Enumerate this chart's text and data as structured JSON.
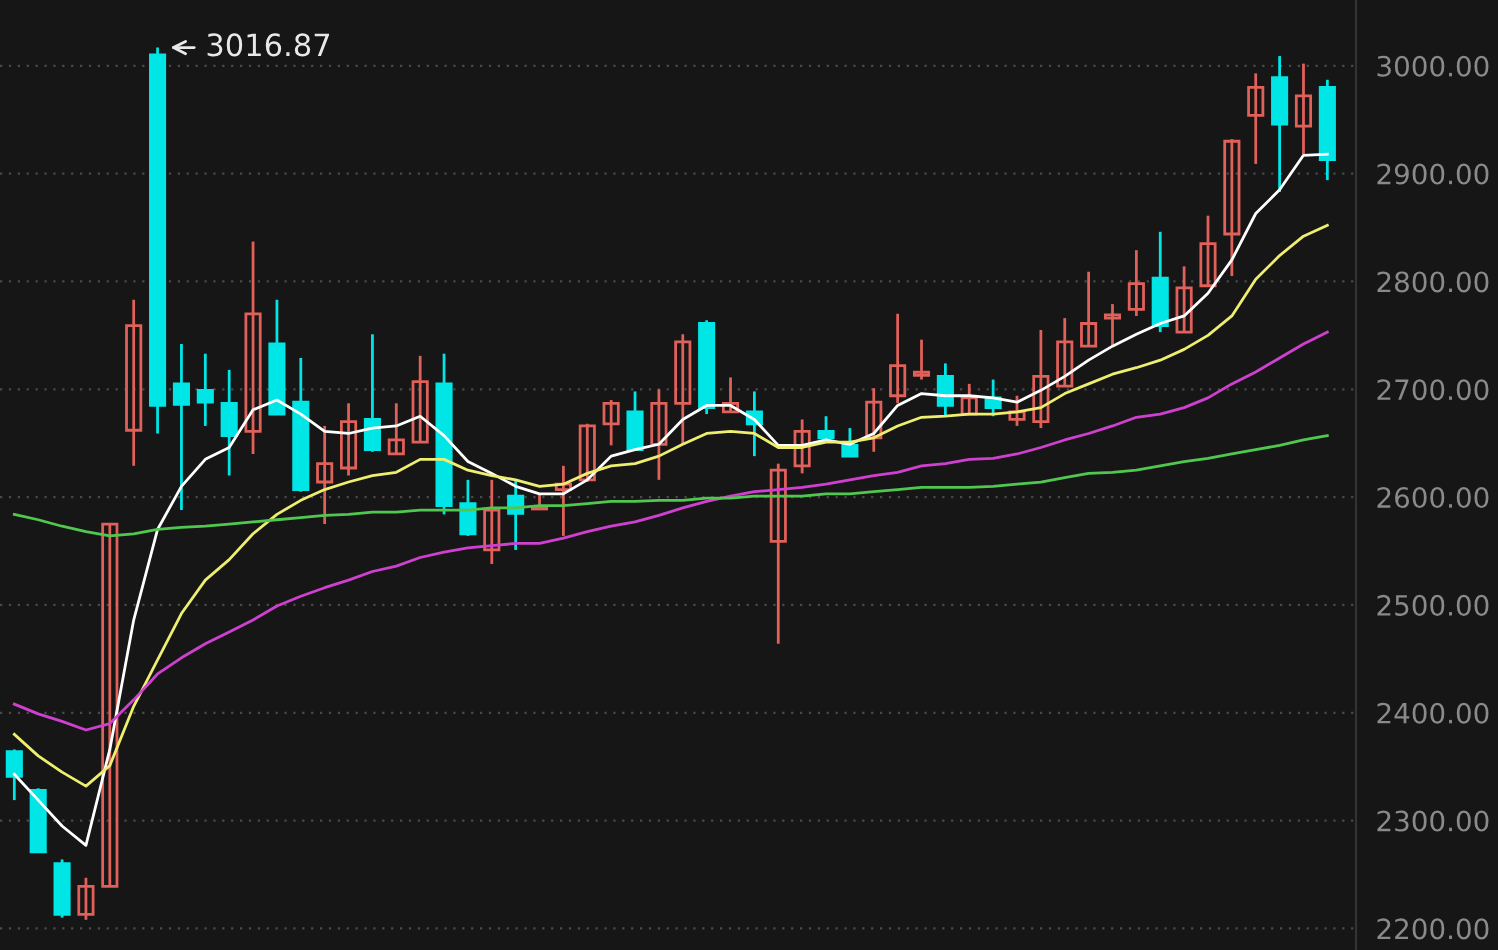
{
  "chart_data": {
    "type": "candlestick",
    "categories": [
      null,
      null,
      null,
      null,
      null,
      null,
      null,
      null,
      null,
      null,
      null,
      null,
      null,
      null,
      null,
      null,
      null,
      null,
      null,
      null,
      null,
      null,
      null,
      null,
      null,
      null,
      null,
      null,
      null,
      null,
      null,
      null,
      null,
      null,
      null,
      null,
      null,
      null,
      null,
      null,
      null,
      null,
      null,
      null,
      null,
      null,
      null,
      null,
      null,
      null,
      null,
      null,
      null,
      null,
      null,
      null
    ],
    "ohlc": [
      [
        2364,
        2366,
        2319,
        2341
      ],
      [
        2328,
        2330,
        2271,
        2271
      ],
      [
        2260,
        2264,
        2210,
        2213
      ],
      [
        2213,
        2247,
        2208,
        2239
      ],
      [
        2239,
        2575,
        2239,
        2575
      ],
      [
        2662,
        2783,
        2629,
        2759
      ],
      [
        3010,
        3016.87,
        2659,
        2685
      ],
      [
        2705,
        2742,
        2588,
        2686
      ],
      [
        2699,
        2733,
        2666,
        2688
      ],
      [
        2687,
        2718,
        2620,
        2657
      ],
      [
        2661,
        2837,
        2640,
        2770
      ],
      [
        2742,
        2783,
        2677,
        2677
      ],
      [
        2688,
        2729,
        2605,
        2607
      ],
      [
        2614,
        2666,
        2575,
        2631
      ],
      [
        2627,
        2687,
        2620,
        2670
      ],
      [
        2672,
        2751,
        2642,
        2644
      ],
      [
        2640,
        2687,
        2640,
        2653
      ],
      [
        2651,
        2731,
        2651,
        2707
      ],
      [
        2705,
        2733,
        2584,
        2592
      ],
      [
        2594,
        2616,
        2564,
        2566
      ],
      [
        2551,
        2616,
        2538,
        2588
      ],
      [
        2601,
        2616,
        2551,
        2585
      ],
      [
        2589,
        2603,
        2588,
        2591
      ],
      [
        2607,
        2629,
        2564,
        2612
      ],
      [
        2616,
        2668,
        2614,
        2666
      ],
      [
        2668,
        2690,
        2648,
        2687
      ],
      [
        2679,
        2698,
        2644,
        2644
      ],
      [
        2649,
        2700,
        2616,
        2687
      ],
      [
        2687,
        2751,
        2649,
        2744
      ],
      [
        2761,
        2764,
        2677,
        2683
      ],
      [
        2679,
        2711,
        2679,
        2687
      ],
      [
        2679,
        2698,
        2638,
        2668
      ],
      [
        2559,
        2631,
        2464,
        2625
      ],
      [
        2629,
        2672,
        2622,
        2661
      ],
      [
        2661,
        2675,
        2655,
        2655
      ],
      [
        2648,
        2664,
        2638,
        2638
      ],
      [
        2655,
        2701,
        2642,
        2688
      ],
      [
        2694,
        2770,
        2687,
        2722
      ],
      [
        2713,
        2746,
        2709,
        2716
      ],
      [
        2712,
        2724,
        2675,
        2685
      ],
      [
        2677,
        2705,
        2677,
        2692
      ],
      [
        2692,
        2709,
        2675,
        2683
      ],
      [
        2672,
        2694,
        2666,
        2679
      ],
      [
        2670,
        2755,
        2664,
        2712
      ],
      [
        2703,
        2766,
        2703,
        2744
      ],
      [
        2740,
        2809,
        2740,
        2761
      ],
      [
        2766,
        2779,
        2740,
        2769
      ],
      [
        2774,
        2829,
        2768,
        2798
      ],
      [
        2803,
        2846,
        2753,
        2759
      ],
      [
        2753,
        2814,
        2753,
        2794
      ],
      [
        2796,
        2861,
        2796,
        2835
      ],
      [
        2844,
        2932,
        2805,
        2930
      ],
      [
        2954,
        2993,
        2909,
        2980
      ],
      [
        2989,
        3009,
        2883,
        2946
      ],
      [
        2944,
        3002,
        2918,
        2972
      ],
      [
        2980,
        2987,
        2894,
        2913
      ]
    ],
    "colors": [
      "#00e5e5",
      "#00e5e5",
      "#00e5e5",
      "#e0605a",
      "#e0605a",
      "#e0605a",
      "#00e5e5",
      "#00e5e5",
      "#00e5e5",
      "#00e5e5",
      "#e0605a",
      "#00e5e5",
      "#00e5e5",
      "#e0605a",
      "#e0605a",
      "#00e5e5",
      "#e0605a",
      "#e0605a",
      "#00e5e5",
      "#00e5e5",
      "#e0605a",
      "#00e5e5",
      "#e0605a",
      "#e0605a",
      "#e0605a",
      "#e0605a",
      "#00e5e5",
      "#e0605a",
      "#e0605a",
      "#00e5e5",
      "#e0605a",
      "#00e5e5",
      "#e0605a",
      "#e0605a",
      "#00e5e5",
      "#00e5e5",
      "#e0605a",
      "#e0605a",
      "#e0605a",
      "#00e5e5",
      "#e0605a",
      "#00e5e5",
      "#e0605a",
      "#e0605a",
      "#e0605a",
      "#e0605a",
      "#e0605a",
      "#e0605a",
      "#00e5e5",
      "#e0605a",
      "#e0605a",
      "#e0605a",
      "#e0605a",
      "#00e5e5",
      "#e0605a",
      "#00e5e5"
    ],
    "series": [
      {
        "type": "line",
        "color": "#ffffff",
        "values": [
          2343,
          2319,
          2295,
          2277,
          2366,
          2486,
          2570,
          2610,
          2635,
          2646,
          2681,
          2690,
          2677,
          2661,
          2659,
          2664,
          2666,
          2675,
          2657,
          2633,
          2622,
          2610,
          2603,
          2603,
          2616,
          2638,
          2644,
          2649,
          2672,
          2685,
          2685,
          2672,
          2648,
          2648,
          2653,
          2649,
          2659,
          2685,
          2696,
          2694,
          2694,
          2692,
          2688,
          2699,
          2712,
          2727,
          2740,
          2751,
          2761,
          2768,
          2789,
          2820,
          2863,
          2885,
          2917,
          2918
        ]
      },
      {
        "type": "line",
        "color": "#eeee70",
        "values": [
          2380,
          2360,
          2345,
          2332,
          2351,
          2406,
          2449,
          2492,
          2523,
          2542,
          2566,
          2584,
          2597,
          2607,
          2614,
          2620,
          2623,
          2635,
          2635,
          2625,
          2620,
          2616,
          2610,
          2612,
          2622,
          2629,
          2631,
          2638,
          2649,
          2659,
          2661,
          2659,
          2646,
          2646,
          2651,
          2651,
          2655,
          2666,
          2674,
          2675,
          2677,
          2677,
          2679,
          2683,
          2696,
          2705,
          2714,
          2720,
          2727,
          2737,
          2750,
          2768,
          2802,
          2824,
          2842,
          2852
        ]
      },
      {
        "type": "line",
        "color": "#d040d0",
        "values": [
          2408,
          2399,
          2392,
          2384,
          2390,
          2412,
          2436,
          2451,
          2464,
          2475,
          2486,
          2499,
          2508,
          2516,
          2523,
          2531,
          2536,
          2544,
          2549,
          2553,
          2555,
          2557,
          2557,
          2562,
          2568,
          2573,
          2577,
          2583,
          2590,
          2596,
          2601,
          2605,
          2607,
          2609,
          2612,
          2616,
          2620,
          2623,
          2629,
          2631,
          2635,
          2636,
          2640,
          2646,
          2653,
          2659,
          2666,
          2674,
          2677,
          2683,
          2692,
          2705,
          2716,
          2729,
          2742,
          2753
        ]
      },
      {
        "type": "line",
        "color": "#50c850",
        "values": [
          2584,
          2579,
          2573,
          2568,
          2564,
          2566,
          2570,
          2572,
          2573,
          2575,
          2577,
          2579,
          2581,
          2583,
          2584,
          2586,
          2586,
          2588,
          2588,
          2588,
          2590,
          2590,
          2592,
          2592,
          2594,
          2596,
          2596,
          2597,
          2597,
          2599,
          2599,
          2601,
          2601,
          2601,
          2603,
          2603,
          2605,
          2607,
          2609,
          2609,
          2609,
          2610,
          2612,
          2614,
          2618,
          2622,
          2623,
          2625,
          2629,
          2633,
          2636,
          2640,
          2644,
          2648,
          2653,
          2657
        ]
      }
    ],
    "ylim": [
      2180,
      3061
    ],
    "yticks": [
      {
        "value": 2200,
        "label": "2200.00"
      },
      {
        "value": 2300,
        "label": "2300.00"
      },
      {
        "value": 2400,
        "label": "2400.00"
      },
      {
        "value": 2500,
        "label": "2500.00"
      },
      {
        "value": 2600,
        "label": "2600.00"
      },
      {
        "value": 2700,
        "label": "2700.00"
      },
      {
        "value": 2800,
        "label": "2800.00"
      },
      {
        "value": 2900,
        "label": "2900.00"
      },
      {
        "value": 3000,
        "label": "3000.00"
      }
    ],
    "tick_labels": "y",
    "grid": "y",
    "legend": false,
    "annotations": [
      "3016.87"
    ]
  }
}
